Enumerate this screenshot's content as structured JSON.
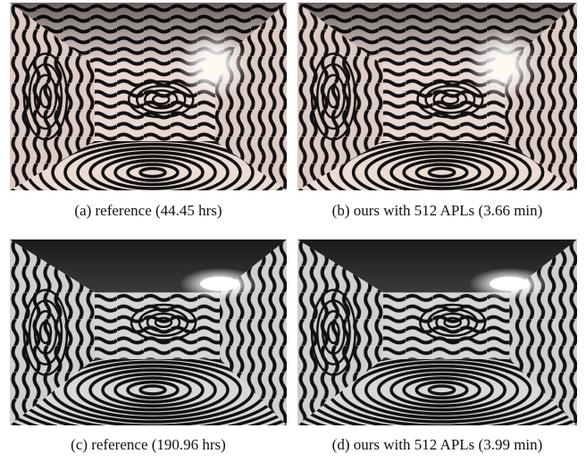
{
  "figure": {
    "panels": [
      {
        "caption": "(a) reference (44.45 hrs)"
      },
      {
        "caption": "(b) ours with 512 APLs (3.66 min)"
      },
      {
        "caption": "(c) reference (190.96 hrs)"
      },
      {
        "caption": "(d) ours with 512 APLs (3.99 min)"
      }
    ]
  }
}
